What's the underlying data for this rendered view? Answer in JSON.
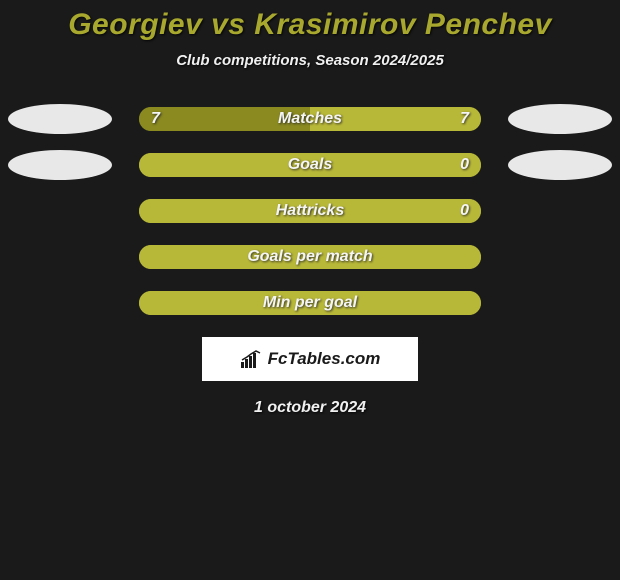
{
  "title": "Georgiev vs Krasimirov Penchev",
  "subtitle": "Club competitions, Season 2024/2025",
  "date": "1 october 2024",
  "logo_text": "FcTables.com",
  "colors": {
    "background": "#1a1a1a",
    "title": "#a8a82e",
    "text_light": "#f0f0f0",
    "pill_light": "#e8e8e8",
    "bar_olive_dark": "#8a8a20",
    "bar_olive_light": "#b8b838",
    "logo_bg": "#ffffff"
  },
  "rows": [
    {
      "label": "Matches",
      "left_val": "7",
      "right_val": "7",
      "show_vals": true,
      "show_pills": true,
      "left_fill_pct": 50,
      "right_fill_pct": 50,
      "left_color": "#8a8a20",
      "right_color": "#b8b838"
    },
    {
      "label": "Goals",
      "left_val": "",
      "right_val": "0",
      "show_vals": true,
      "show_pills": true,
      "left_fill_pct": 100,
      "right_fill_pct": 0,
      "left_color": "#b8b838",
      "right_color": "#b8b838"
    },
    {
      "label": "Hattricks",
      "left_val": "",
      "right_val": "0",
      "show_vals": true,
      "show_pills": false,
      "left_fill_pct": 100,
      "right_fill_pct": 0,
      "left_color": "#b8b838",
      "right_color": "#b8b838"
    },
    {
      "label": "Goals per match",
      "left_val": "",
      "right_val": "",
      "show_vals": false,
      "show_pills": false,
      "left_fill_pct": 100,
      "right_fill_pct": 0,
      "left_color": "#b8b838",
      "right_color": "#b8b838"
    },
    {
      "label": "Min per goal",
      "left_val": "",
      "right_val": "",
      "show_vals": false,
      "show_pills": false,
      "left_fill_pct": 100,
      "right_fill_pct": 0,
      "left_color": "#b8b838",
      "right_color": "#b8b838"
    }
  ]
}
